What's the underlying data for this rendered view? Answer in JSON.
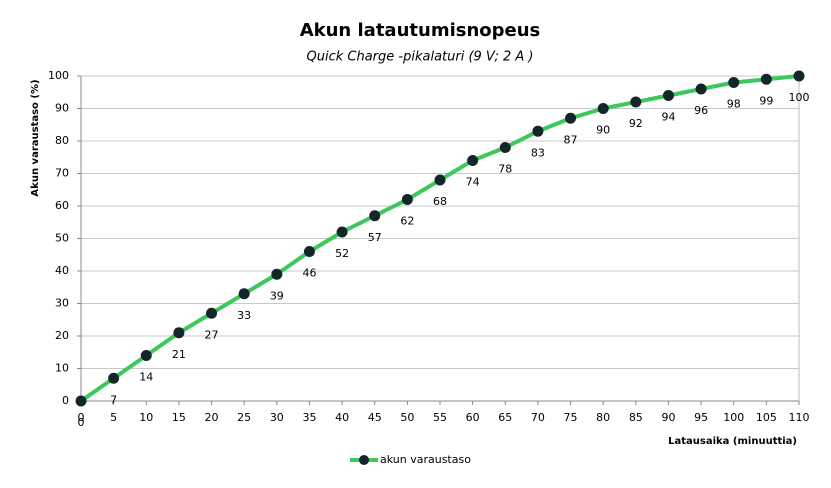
{
  "chart_data": {
    "type": "line",
    "title": "Akun latautumisnopeus",
    "subtitle": "Quick Charge -pikalaturi (9 V; 2 A )",
    "x_label": "Latausaika  (minuuttia)",
    "y_label": "Akun varaustaso  (%)",
    "x": [
      0,
      5,
      10,
      15,
      20,
      25,
      30,
      35,
      40,
      45,
      50,
      55,
      60,
      65,
      70,
      75,
      80,
      85,
      90,
      95,
      100,
      105,
      110
    ],
    "series": [
      {
        "name": "akun varaustaso",
        "color": "#3cc85a",
        "marker_color": "#14262c",
        "values": [
          0,
          7,
          14,
          21,
          27,
          33,
          39,
          46,
          52,
          57,
          62,
          68,
          74,
          78,
          83,
          87,
          90,
          92,
          94,
          96,
          98,
          99,
          100
        ]
      }
    ],
    "xlim": [
      0,
      110
    ],
    "xticks": [
      0,
      5,
      10,
      15,
      20,
      25,
      30,
      35,
      40,
      45,
      50,
      55,
      60,
      65,
      70,
      75,
      80,
      85,
      90,
      95,
      100,
      105,
      110
    ],
    "ylim": [
      0,
      100
    ],
    "yticks": [
      0,
      10,
      20,
      30,
      40,
      50,
      60,
      70,
      80,
      90,
      100
    ],
    "grid": true,
    "legend": "bottom"
  }
}
